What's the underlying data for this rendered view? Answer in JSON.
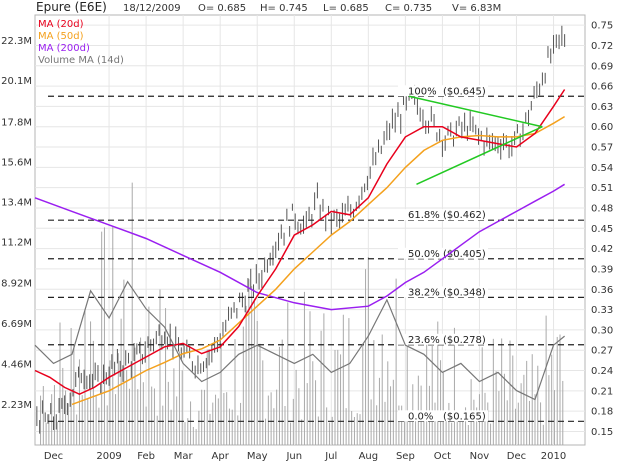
{
  "header": {
    "title": "Epure (E6E)",
    "date": "18/12/2009",
    "open": "O= 0.685",
    "high": "H= 0.745",
    "low": "L= 0.685",
    "close": "C= 0.735",
    "volume": "V= 6.83M"
  },
  "legend": [
    {
      "label": "MA (20d)",
      "color": "#e8001c"
    },
    {
      "label": "MA (50d)",
      "color": "#f4a11d"
    },
    {
      "label": "MA (200d)",
      "color": "#9a1ff0"
    },
    {
      "label": "Volume MA (14d)",
      "color": "#777777"
    }
  ],
  "chart_data": {
    "type": "line",
    "price_axis": {
      "ticks": [
        "0.15",
        "0.18",
        "0.21",
        "0.24",
        "0.27",
        "0.30",
        "0.33",
        "0.36",
        "0.39",
        "0.42",
        "0.45",
        "0.48",
        "0.51",
        "0.54",
        "0.57",
        "0.60",
        "0.63",
        "0.66",
        "0.69",
        "0.72",
        "0.75"
      ],
      "ylim": [
        0.13,
        0.765
      ]
    },
    "volume_axis": {
      "ticks": [
        "2.23M",
        "4.46M",
        "6.69M",
        "8.92M",
        "11.2M",
        "13.4M",
        "15.6M",
        "17.8M",
        "20.1M",
        "22.3M"
      ],
      "ylim": [
        0,
        23.7
      ]
    },
    "x_labels": [
      "Dec",
      "2009",
      "Feb",
      "Mar",
      "Apr",
      "May",
      "Jun",
      "Jul",
      "Aug",
      "Sep",
      "Oct",
      "Nov",
      "Dec",
      "2010"
    ],
    "x_label_months": [
      0.5,
      2.0,
      3.0,
      4.0,
      5.0,
      6.0,
      7.0,
      8.0,
      9.0,
      10.0,
      11.0,
      12.0,
      13.0,
      14.0
    ],
    "x_range_months": [
      0,
      14.85
    ],
    "fib_levels": [
      {
        "label": "100%",
        "value_label": "($0.645)",
        "price": 0.645
      },
      {
        "label": "61.8%",
        "value_label": "($0.462)",
        "price": 0.462
      },
      {
        "label": "50.0%",
        "value_label": "($0.405)",
        "price": 0.405
      },
      {
        "label": "38.2%",
        "value_label": "($0.348)",
        "price": 0.348
      },
      {
        "label": "23.6%",
        "value_label": "($0.278)",
        "price": 0.278
      },
      {
        "label": "0.0%",
        "value_label": "($0.165)",
        "price": 0.165
      }
    ],
    "price_keypoints": [
      [
        0.0,
        0.175
      ],
      [
        0.3,
        0.165
      ],
      [
        0.6,
        0.17
      ],
      [
        1.0,
        0.21
      ],
      [
        1.3,
        0.24
      ],
      [
        1.7,
        0.22
      ],
      [
        2.0,
        0.24
      ],
      [
        2.4,
        0.25
      ],
      [
        2.8,
        0.26
      ],
      [
        3.2,
        0.285
      ],
      [
        3.5,
        0.3
      ],
      [
        3.8,
        0.275
      ],
      [
        4.1,
        0.26
      ],
      [
        4.4,
        0.25
      ],
      [
        4.8,
        0.27
      ],
      [
        5.1,
        0.3
      ],
      [
        5.4,
        0.33
      ],
      [
        5.8,
        0.36
      ],
      [
        6.1,
        0.38
      ],
      [
        6.3,
        0.41
      ],
      [
        6.6,
        0.44
      ],
      [
        7.0,
        0.47
      ],
      [
        7.3,
        0.45
      ],
      [
        7.6,
        0.49
      ],
      [
        7.9,
        0.465
      ],
      [
        8.2,
        0.46
      ],
      [
        8.6,
        0.48
      ],
      [
        8.9,
        0.52
      ],
      [
        9.3,
        0.56
      ],
      [
        9.6,
        0.6
      ],
      [
        9.9,
        0.62
      ],
      [
        10.2,
        0.64
      ],
      [
        10.5,
        0.62
      ],
      [
        10.8,
        0.6
      ],
      [
        11.1,
        0.58
      ],
      [
        11.4,
        0.595
      ],
      [
        11.7,
        0.6
      ],
      [
        12.0,
        0.585
      ],
      [
        12.3,
        0.575
      ],
      [
        12.6,
        0.58
      ],
      [
        12.9,
        0.57
      ],
      [
        13.2,
        0.6
      ],
      [
        13.4,
        0.63
      ],
      [
        13.6,
        0.66
      ],
      [
        13.8,
        0.69
      ],
      [
        14.0,
        0.71
      ],
      [
        14.2,
        0.73
      ]
    ],
    "ma20_keypoints": [
      [
        0.0,
        0.24
      ],
      [
        0.4,
        0.23
      ],
      [
        0.8,
        0.215
      ],
      [
        1.2,
        0.205
      ],
      [
        1.6,
        0.215
      ],
      [
        2.0,
        0.23
      ],
      [
        2.5,
        0.245
      ],
      [
        3.0,
        0.26
      ],
      [
        3.5,
        0.275
      ],
      [
        4.0,
        0.28
      ],
      [
        4.5,
        0.265
      ],
      [
        5.0,
        0.275
      ],
      [
        5.5,
        0.305
      ],
      [
        6.0,
        0.35
      ],
      [
        6.5,
        0.39
      ],
      [
        7.0,
        0.44
      ],
      [
        7.5,
        0.455
      ],
      [
        8.0,
        0.475
      ],
      [
        8.5,
        0.47
      ],
      [
        9.0,
        0.495
      ],
      [
        9.5,
        0.545
      ],
      [
        10.0,
        0.585
      ],
      [
        10.5,
        0.6
      ],
      [
        11.0,
        0.6
      ],
      [
        11.5,
        0.585
      ],
      [
        12.0,
        0.58
      ],
      [
        12.5,
        0.575
      ],
      [
        13.0,
        0.57
      ],
      [
        13.5,
        0.59
      ],
      [
        14.0,
        0.63
      ],
      [
        14.3,
        0.655
      ]
    ],
    "ma50_keypoints": [
      [
        1.0,
        0.19
      ],
      [
        1.5,
        0.2
      ],
      [
        2.0,
        0.21
      ],
      [
        2.5,
        0.225
      ],
      [
        3.0,
        0.24
      ],
      [
        3.5,
        0.252
      ],
      [
        4.0,
        0.265
      ],
      [
        4.5,
        0.272
      ],
      [
        5.0,
        0.285
      ],
      [
        5.5,
        0.31
      ],
      [
        6.0,
        0.335
      ],
      [
        6.5,
        0.36
      ],
      [
        7.0,
        0.39
      ],
      [
        7.5,
        0.415
      ],
      [
        8.0,
        0.44
      ],
      [
        8.5,
        0.46
      ],
      [
        9.0,
        0.485
      ],
      [
        9.5,
        0.51
      ],
      [
        10.0,
        0.54
      ],
      [
        10.5,
        0.565
      ],
      [
        11.0,
        0.58
      ],
      [
        11.5,
        0.585
      ],
      [
        12.0,
        0.587
      ],
      [
        12.5,
        0.585
      ],
      [
        13.0,
        0.585
      ],
      [
        13.5,
        0.59
      ],
      [
        14.0,
        0.605
      ],
      [
        14.3,
        0.615
      ]
    ],
    "ma200_keypoints": [
      [
        0.0,
        0.495
      ],
      [
        1.0,
        0.475
      ],
      [
        2.0,
        0.455
      ],
      [
        3.0,
        0.435
      ],
      [
        4.0,
        0.41
      ],
      [
        5.0,
        0.385
      ],
      [
        6.0,
        0.355
      ],
      [
        7.0,
        0.34
      ],
      [
        8.0,
        0.33
      ],
      [
        9.0,
        0.335
      ],
      [
        9.5,
        0.35
      ],
      [
        10.0,
        0.37
      ],
      [
        10.5,
        0.385
      ],
      [
        11.0,
        0.405
      ],
      [
        11.5,
        0.425
      ],
      [
        12.0,
        0.445
      ],
      [
        12.5,
        0.46
      ],
      [
        13.0,
        0.475
      ],
      [
        13.5,
        0.49
      ],
      [
        14.0,
        0.505
      ],
      [
        14.3,
        0.515
      ]
    ],
    "volume_ma_keypoints": [
      [
        0.0,
        5.5
      ],
      [
        0.5,
        4.5
      ],
      [
        1.0,
        5.0
      ],
      [
        1.5,
        8.5
      ],
      [
        2.0,
        7.0
      ],
      [
        2.5,
        9.0
      ],
      [
        3.0,
        7.5
      ],
      [
        3.5,
        6.5
      ],
      [
        4.0,
        4.5
      ],
      [
        4.5,
        3.5
      ],
      [
        5.0,
        4.0
      ],
      [
        5.5,
        5.0
      ],
      [
        6.0,
        5.5
      ],
      [
        6.5,
        5.0
      ],
      [
        7.0,
        4.5
      ],
      [
        7.5,
        5.0
      ],
      [
        8.0,
        4.0
      ],
      [
        8.5,
        4.5
      ],
      [
        9.0,
        6.0
      ],
      [
        9.5,
        8.0
      ],
      [
        10.0,
        5.5
      ],
      [
        10.5,
        5.0
      ],
      [
        11.0,
        4.0
      ],
      [
        11.5,
        4.5
      ],
      [
        12.0,
        3.5
      ],
      [
        12.5,
        4.0
      ],
      [
        13.0,
        3.0
      ],
      [
        13.5,
        2.5
      ],
      [
        14.0,
        5.5
      ],
      [
        14.3,
        6.0
      ]
    ],
    "volume_envelope": [
      [
        0.0,
        6.0
      ],
      [
        1.0,
        9.0
      ],
      [
        1.5,
        14.0
      ],
      [
        2.0,
        12.0
      ],
      [
        2.5,
        16.0
      ],
      [
        3.0,
        11.0
      ],
      [
        3.5,
        9.0
      ],
      [
        4.0,
        7.0
      ],
      [
        4.5,
        5.0
      ],
      [
        5.0,
        7.0
      ],
      [
        5.5,
        9.0
      ],
      [
        6.0,
        10.0
      ],
      [
        6.5,
        9.0
      ],
      [
        7.0,
        8.0
      ],
      [
        7.5,
        9.0
      ],
      [
        8.0,
        8.0
      ],
      [
        8.5,
        9.0
      ],
      [
        9.0,
        13.0
      ],
      [
        9.5,
        15.0
      ],
      [
        10.0,
        10.0
      ],
      [
        10.5,
        9.0
      ],
      [
        11.0,
        7.0
      ],
      [
        11.5,
        8.0
      ],
      [
        12.0,
        6.0
      ],
      [
        12.5,
        7.0
      ],
      [
        13.0,
        5.5
      ],
      [
        13.5,
        5.0
      ],
      [
        14.0,
        9.0
      ],
      [
        14.3,
        8.0
      ]
    ],
    "triangle_lines": [
      {
        "from": [
          10.1,
          0.645
        ],
        "to": [
          13.7,
          0.6
        ]
      },
      {
        "from": [
          10.3,
          0.515
        ],
        "to": [
          13.7,
          0.6
        ]
      }
    ],
    "colors": {
      "candle": "#555555",
      "volume_bar": "#a9a9a9",
      "ma20": "#e8001c",
      "ma50": "#f4a11d",
      "ma200": "#9a1ff0",
      "volume_ma": "#777777",
      "triangle": "#22c922",
      "grid": "#e6e6e6"
    }
  }
}
